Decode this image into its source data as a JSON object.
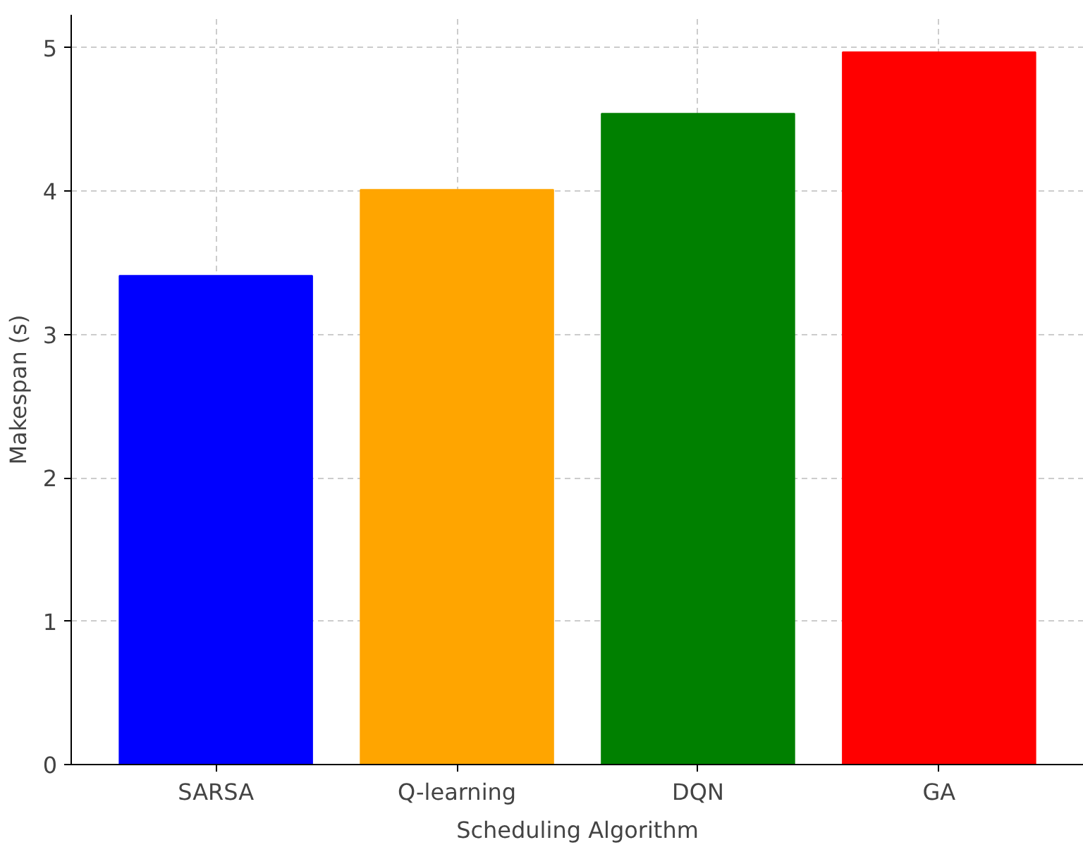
{
  "chart_data": {
    "type": "bar",
    "xlabel": "Scheduling Algorithm",
    "ylabel": "Makespan (s)",
    "categories": [
      "SARSA",
      "Q-learning",
      "DQN",
      "GA"
    ],
    "values": [
      3.41,
      4.01,
      4.54,
      4.97
    ],
    "colors": [
      "#0000ff",
      "#ffa500",
      "#008000",
      "#ff0000"
    ],
    "ylim": [
      0,
      5.23
    ],
    "yticks": [
      0,
      1,
      2,
      3,
      4,
      5
    ],
    "grid": true
  }
}
